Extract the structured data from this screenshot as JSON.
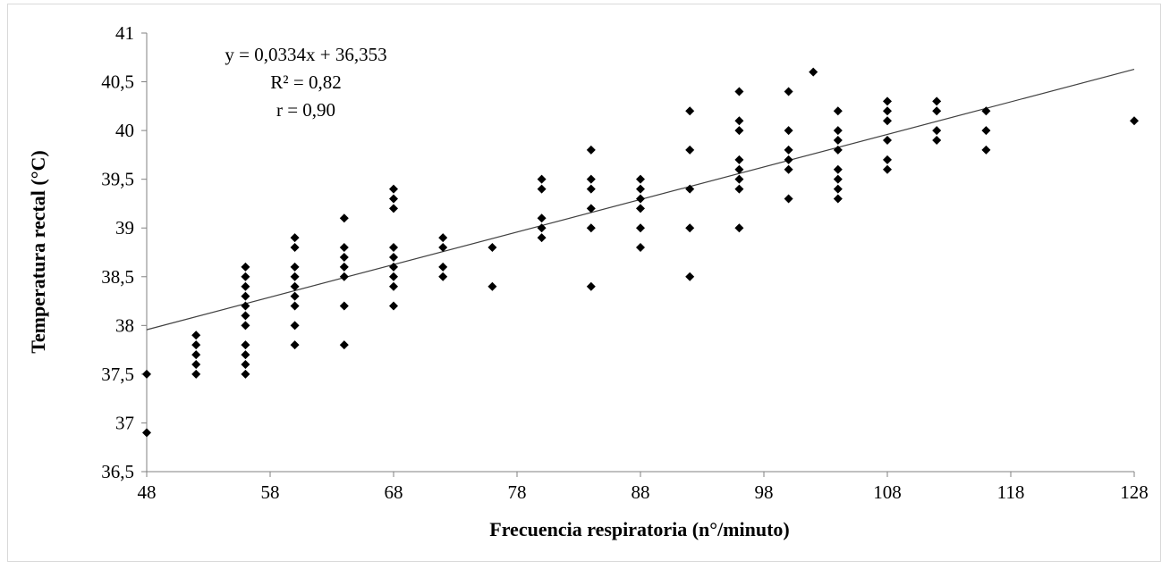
{
  "chart_data": {
    "type": "scatter",
    "title": "",
    "xlabel": "Frecuencia respiratoria  (n°/minuto)",
    "ylabel": "Temperatura  rectal (°C)",
    "xlim": [
      48,
      128
    ],
    "ylim": [
      36.5,
      41
    ],
    "x_ticks": [
      48,
      58,
      68,
      78,
      88,
      98,
      108,
      118,
      128
    ],
    "x_tick_labels": [
      "48",
      "58",
      "68",
      "78",
      "88",
      "98",
      "108",
      "118",
      "128"
    ],
    "y_ticks": [
      36.5,
      37,
      37.5,
      38,
      38.5,
      39,
      39.5,
      40,
      40.5,
      41
    ],
    "y_tick_labels": [
      "36,5",
      "37",
      "37,5",
      "38",
      "38,5",
      "39",
      "39,5",
      "40",
      "40,5",
      "41"
    ],
    "grid": false,
    "legend": "none",
    "marker_color": "#000000",
    "trendline": {
      "slope": 0.0334,
      "intercept": 36.353,
      "color": "#404040"
    },
    "annotations": [
      "y = 0,0334x + 36,353",
      "R² = 0,82",
      "r = 0,90"
    ],
    "points": [
      [
        48,
        37.5
      ],
      [
        48,
        36.9
      ],
      [
        52,
        37.9
      ],
      [
        52,
        37.8
      ],
      [
        52,
        37.7
      ],
      [
        52,
        37.6
      ],
      [
        52,
        37.5
      ],
      [
        56,
        38.6
      ],
      [
        56,
        38.5
      ],
      [
        56,
        38.4
      ],
      [
        56,
        38.3
      ],
      [
        56,
        38.2
      ],
      [
        56,
        38.1
      ],
      [
        56,
        38.0
      ],
      [
        56,
        37.8
      ],
      [
        56,
        37.7
      ],
      [
        56,
        37.6
      ],
      [
        56,
        37.5
      ],
      [
        60,
        38.9
      ],
      [
        60,
        38.8
      ],
      [
        60,
        38.6
      ],
      [
        60,
        38.5
      ],
      [
        60,
        38.4
      ],
      [
        60,
        38.3
      ],
      [
        60,
        38.2
      ],
      [
        60,
        38.0
      ],
      [
        60,
        37.8
      ],
      [
        64,
        39.1
      ],
      [
        64,
        38.8
      ],
      [
        64,
        38.7
      ],
      [
        64,
        38.6
      ],
      [
        64,
        38.5
      ],
      [
        64,
        38.2
      ],
      [
        64,
        37.8
      ],
      [
        68,
        39.4
      ],
      [
        68,
        39.3
      ],
      [
        68,
        39.2
      ],
      [
        68,
        38.8
      ],
      [
        68,
        38.7
      ],
      [
        68,
        38.6
      ],
      [
        68,
        38.5
      ],
      [
        68,
        38.4
      ],
      [
        68,
        38.2
      ],
      [
        72,
        38.9
      ],
      [
        72,
        38.8
      ],
      [
        72,
        38.6
      ],
      [
        72,
        38.5
      ],
      [
        76,
        38.8
      ],
      [
        76,
        38.4
      ],
      [
        80,
        39.5
      ],
      [
        80,
        39.4
      ],
      [
        80,
        39.1
      ],
      [
        80,
        39.0
      ],
      [
        80,
        38.9
      ],
      [
        84,
        39.8
      ],
      [
        84,
        39.5
      ],
      [
        84,
        39.4
      ],
      [
        84,
        39.2
      ],
      [
        84,
        39.0
      ],
      [
        84,
        38.4
      ],
      [
        88,
        39.5
      ],
      [
        88,
        39.4
      ],
      [
        88,
        39.3
      ],
      [
        88,
        39.2
      ],
      [
        88,
        39.0
      ],
      [
        88,
        38.8
      ],
      [
        92,
        40.2
      ],
      [
        92,
        39.8
      ],
      [
        92,
        39.4
      ],
      [
        92,
        39.0
      ],
      [
        92,
        38.5
      ],
      [
        96,
        40.4
      ],
      [
        96,
        40.1
      ],
      [
        96,
        40.0
      ],
      [
        96,
        39.7
      ],
      [
        96,
        39.6
      ],
      [
        96,
        39.5
      ],
      [
        96,
        39.4
      ],
      [
        96,
        39.0
      ],
      [
        100,
        40.4
      ],
      [
        100,
        40.0
      ],
      [
        100,
        39.8
      ],
      [
        100,
        39.7
      ],
      [
        100,
        39.6
      ],
      [
        100,
        39.3
      ],
      [
        102,
        40.6
      ],
      [
        104,
        40.2
      ],
      [
        104,
        40.0
      ],
      [
        104,
        39.9
      ],
      [
        104,
        39.8
      ],
      [
        104,
        39.6
      ],
      [
        104,
        39.5
      ],
      [
        104,
        39.4
      ],
      [
        104,
        39.3
      ],
      [
        108,
        40.3
      ],
      [
        108,
        40.2
      ],
      [
        108,
        40.1
      ],
      [
        108,
        39.9
      ],
      [
        108,
        39.7
      ],
      [
        108,
        39.6
      ],
      [
        112,
        40.3
      ],
      [
        112,
        40.2
      ],
      [
        112,
        40.0
      ],
      [
        112,
        39.9
      ],
      [
        116,
        40.2
      ],
      [
        116,
        40.0
      ],
      [
        116,
        39.8
      ],
      [
        128,
        40.1
      ]
    ]
  }
}
